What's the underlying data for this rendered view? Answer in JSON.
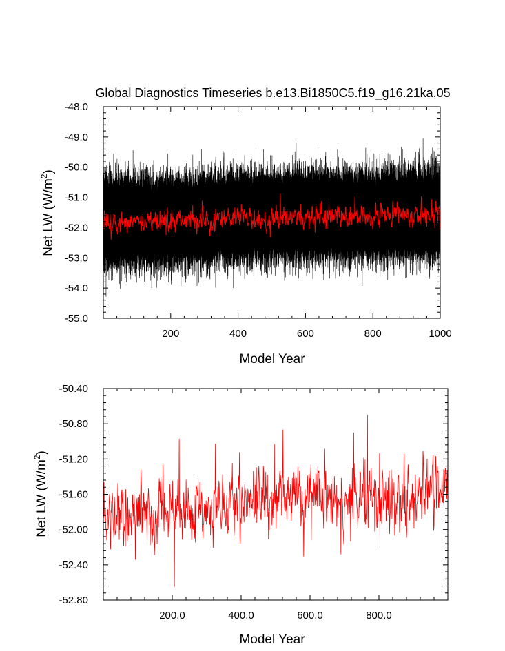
{
  "figure_title": "Global Diagnostics Timeseries b.e13.Bi1850C5.f19_g16.21ka.05",
  "colors": {
    "raw_series": "#000000",
    "smoothed_series": "#ff0000",
    "background": "#ffffff"
  },
  "chart_data": [
    {
      "type": "line",
      "title": "Global Diagnostics Timeseries b.e13.Bi1850C5.f19_g16.21ka.05",
      "xlabel": "Model Year",
      "ylabel_main": "Net LW (W/m",
      "ylabel_sup": "2",
      "ylabel_close": ")",
      "xlim": [
        0,
        1000
      ],
      "ylim": [
        -55.0,
        -48.0
      ],
      "xticks": [
        200,
        400,
        600,
        800,
        1000
      ],
      "xtick_labels": [
        "200",
        "400",
        "600",
        "800",
        "1000"
      ],
      "yticks": [
        -55.0,
        -54.0,
        -53.0,
        -52.0,
        -51.0,
        -50.0,
        -49.0,
        -48.0
      ],
      "ytick_labels": [
        "-55.0",
        "-54.0",
        "-53.0",
        "-52.0",
        "-51.0",
        "-50.0",
        "-49.0",
        "-48.0"
      ],
      "grid": false,
      "series": [
        {
          "color": "#000000",
          "kind": "monthly",
          "x_start": 0,
          "x_end": 1000,
          "n": 12000,
          "mean_x": [
            0,
            200,
            400,
            600,
            800,
            1000
          ],
          "mean_y": [
            -51.8,
            -51.8,
            -51.65,
            -51.6,
            -51.6,
            -51.5
          ],
          "envelope_min": -54.6,
          "envelope_max": -48.1
        },
        {
          "color": "#ff0000",
          "kind": "annual",
          "x_start": 0,
          "x_end": 1000,
          "n": 1000,
          "mean_x": [
            0,
            200,
            400,
            600,
            800,
            1000
          ],
          "mean_y": [
            -51.85,
            -51.8,
            -51.7,
            -51.65,
            -51.6,
            -51.55
          ],
          "range": [
            -52.6,
            -50.75
          ]
        }
      ]
    },
    {
      "type": "line",
      "title": "",
      "xlabel": "Model Year",
      "ylabel_main": "Net LW (W/m",
      "ylabel_sup": "2",
      "ylabel_close": ")",
      "xlim": [
        0,
        1000
      ],
      "ylim": [
        -52.8,
        -50.4
      ],
      "xticks": [
        200,
        400,
        600,
        800
      ],
      "xtick_labels": [
        "200.0",
        "400.0",
        "600.0",
        "800.0"
      ],
      "yticks": [
        -52.8,
        -52.4,
        -52.0,
        -51.6,
        -51.2,
        -50.8,
        -50.4
      ],
      "ytick_labels": [
        "-52.80",
        "-52.40",
        "-52.00",
        "-51.60",
        "-51.20",
        "-50.80",
        "-50.40"
      ],
      "grid": false,
      "series": [
        {
          "color": "#ff0000",
          "kind": "annual",
          "x_start": 0,
          "x_end": 1000,
          "n": 1000,
          "mean_x": [
            0,
            200,
            400,
            600,
            800,
            1000
          ],
          "mean_y": [
            -51.85,
            -51.8,
            -51.7,
            -51.65,
            -51.6,
            -51.55
          ],
          "range": [
            -52.65,
            -50.7
          ]
        }
      ]
    }
  ]
}
